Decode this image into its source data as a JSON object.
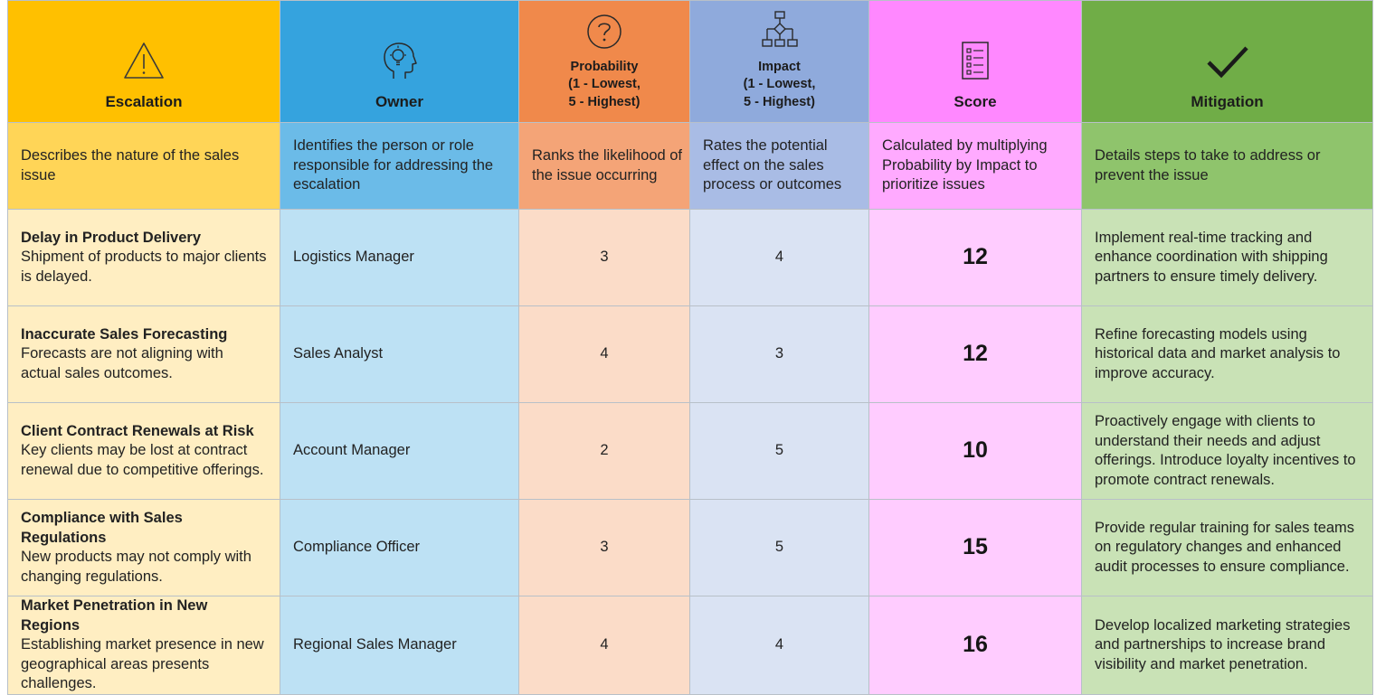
{
  "headers": {
    "escalation": "Escalation",
    "owner": "Owner",
    "probability": [
      "Probability",
      "(1 - Lowest,",
      "5 - Highest)"
    ],
    "impact": [
      "Impact",
      "(1 - Lowest,",
      "5 - Highest)"
    ],
    "score": "Score",
    "mitigation": "Mitigation"
  },
  "icons": {
    "escalation": "warning-triangle-icon",
    "owner": "head-lightbulb-icon",
    "probability": "question-circle-icon",
    "impact": "flowchart-icon",
    "score": "checklist-icon",
    "mitigation": "checkmark-icon"
  },
  "descriptions": {
    "escalation": "Describes the nature of the sales issue",
    "owner": "Identifies the person or role responsible for addressing the escalation",
    "probability": "Ranks the likelihood of the issue occurring",
    "impact": "Rates the potential effect on the sales process or outcomes",
    "score": "Calculated by multiplying Probability by Impact to prioritize issues",
    "mitigation": "Details steps to take to address or prevent the issue"
  },
  "rows": [
    {
      "title": "Delay in Product Delivery",
      "detail": "Shipment of products to major clients is delayed.",
      "owner": "Logistics Manager",
      "probability": "3",
      "impact": "4",
      "score": "12",
      "mitigation": "Implement real-time tracking and enhance coordination with shipping partners to ensure timely delivery."
    },
    {
      "title": "Inaccurate Sales Forecasting",
      "detail": "Forecasts are not aligning with actual sales outcomes.",
      "owner": "Sales Analyst",
      "probability": "4",
      "impact": "3",
      "score": "12",
      "mitigation": "Refine forecasting models using historical data and market analysis to improve accuracy."
    },
    {
      "title": "Client Contract Renewals at Risk",
      "detail": "Key clients may be lost at contract renewal due to competitive offerings.",
      "owner": "Account Manager",
      "probability": "2",
      "impact": "5",
      "score": "10",
      "mitigation": "Proactively engage with clients to understand their needs and adjust offerings. Introduce loyalty incentives to promote contract renewals."
    },
    {
      "title": "Compliance with Sales Regulations",
      "detail": "New products may not comply with changing regulations.",
      "owner": "Compliance Officer",
      "probability": "3",
      "impact": "5",
      "score": "15",
      "mitigation": "Provide regular training for sales teams on regulatory changes and enhanced audit processes to ensure compliance."
    },
    {
      "title": "Market Penetration in New Regions",
      "detail": "Establishing market presence in new geographical areas presents challenges.",
      "owner": "Regional Sales Manager",
      "probability": "4",
      "impact": "4",
      "score": "16",
      "mitigation": "Develop localized marketing strategies and partnerships to increase brand visibility and market penetration."
    }
  ]
}
